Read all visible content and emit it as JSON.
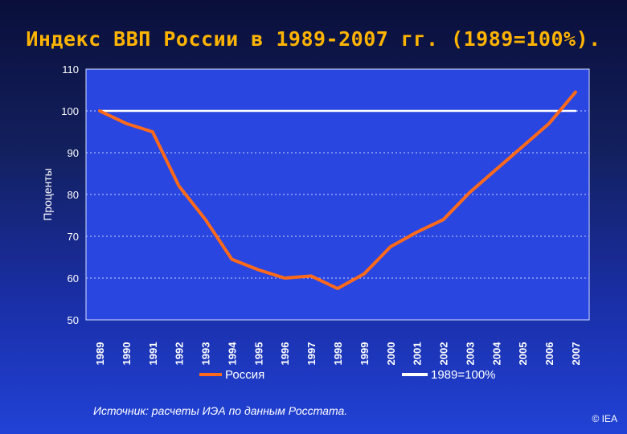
{
  "slide": {
    "title": "Индекс ВВП России в 1989-2007 гг. (1989=100%).",
    "source": "Источник: расчеты ИЭА по данным Росстата.",
    "copyright": "© IEA"
  },
  "colors": {
    "russia_series": "#ff6a1a",
    "baseline_series": "#ffffff",
    "plot_background": "#2a46e0",
    "title": "#ffb400"
  },
  "chart_data": {
    "type": "line",
    "title": "Индекс ВВП России в 1989-2007 гг. (1989=100%).",
    "xlabel": "",
    "ylabel": "Проценты",
    "ylim": [
      50,
      110
    ],
    "yticks": [
      50,
      60,
      70,
      80,
      90,
      100,
      110
    ],
    "grid": true,
    "legend_position": "bottom",
    "categories": [
      "1989",
      "1990",
      "1991",
      "1992",
      "1993",
      "1994",
      "1995",
      "1996",
      "1997",
      "1998",
      "1999",
      "2000",
      "2001",
      "2002",
      "2003",
      "2004",
      "2005",
      "2006",
      "2007"
    ],
    "series": [
      {
        "name": "Россия",
        "color": "#ff6a1a",
        "values": [
          100,
          97,
          95,
          82,
          74,
          64.5,
          62,
          60,
          60.5,
          57.5,
          61,
          67.5,
          71,
          74,
          80.5,
          86,
          91.5,
          97,
          104.5
        ]
      },
      {
        "name": "1989=100%",
        "color": "#ffffff",
        "values": [
          100,
          100,
          100,
          100,
          100,
          100,
          100,
          100,
          100,
          100,
          100,
          100,
          100,
          100,
          100,
          100,
          100,
          100,
          100
        ]
      }
    ]
  }
}
